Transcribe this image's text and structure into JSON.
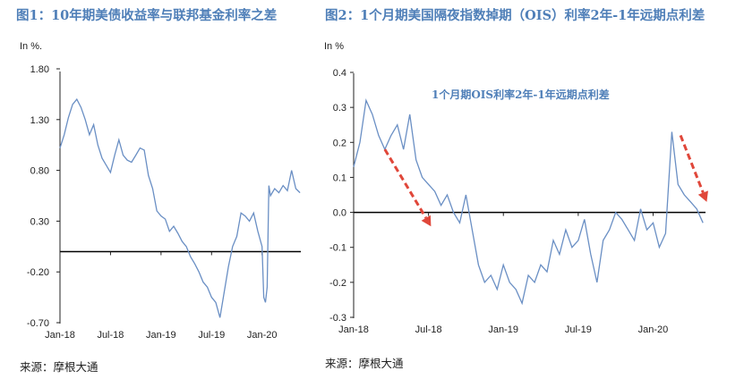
{
  "fig1": {
    "title": "图1：10年期美债收益率与联邦基金利率之差",
    "source": "来源：摩根大通",
    "chart_data": {
      "type": "line",
      "ylabel": "In %.",
      "ylim": [
        -0.7,
        1.8
      ],
      "yticks": [
        1.8,
        1.3,
        0.8,
        0.3,
        -0.2,
        -0.7
      ],
      "ytick_labels": [
        "1.80",
        "1.30",
        "0.80",
        "0.30",
        "-0.20",
        "-0.70"
      ],
      "xlim": [
        0,
        28.6
      ],
      "xticks": [
        0,
        6,
        12,
        18,
        24
      ],
      "xtick_labels": [
        "Jan-18",
        "Jul-18",
        "Jan-19",
        "Jul-19",
        "Jan-20"
      ],
      "zero_line": true,
      "line_color": "#6a8fc4",
      "x": [
        0,
        0.5,
        1,
        1.5,
        2,
        2.5,
        3,
        3.5,
        4,
        4.5,
        5,
        5.5,
        6,
        6.5,
        7,
        7.5,
        8,
        8.5,
        9,
        9.5,
        10,
        10.5,
        11,
        11.5,
        12,
        12.5,
        13,
        13.5,
        14,
        14.5,
        15,
        15.5,
        16,
        16.5,
        17,
        17.5,
        18,
        18.5,
        19,
        19.5,
        20,
        20.5,
        21,
        21.5,
        22,
        22.5,
        23,
        23.5,
        24,
        24.2,
        24.4,
        24.6,
        24.8,
        25,
        25.5,
        26,
        26.5,
        27,
        27.5,
        28,
        28.5
      ],
      "y": [
        1.02,
        1.15,
        1.32,
        1.45,
        1.5,
        1.42,
        1.3,
        1.15,
        1.25,
        1.05,
        0.92,
        0.85,
        0.78,
        0.95,
        1.1,
        0.95,
        0.9,
        0.88,
        0.95,
        1.02,
        1.0,
        0.75,
        0.62,
        0.4,
        0.35,
        0.32,
        0.2,
        0.25,
        0.18,
        0.1,
        0.05,
        -0.05,
        -0.12,
        -0.2,
        -0.3,
        -0.35,
        -0.45,
        -0.5,
        -0.65,
        -0.4,
        -0.15,
        0.05,
        0.15,
        0.38,
        0.35,
        0.3,
        0.38,
        0.2,
        0.05,
        -0.45,
        -0.5,
        -0.35,
        0.65,
        0.55,
        0.62,
        0.58,
        0.65,
        0.6,
        0.8,
        0.62,
        0.58
      ]
    }
  },
  "fig2": {
    "title": "图2：1个月期美国隔夜指数掉期（OIS）利率2年-1年远期点利差",
    "source": "来源：摩根大通",
    "chart_data": {
      "type": "line",
      "ylabel": "In %",
      "series_label": "1个月期OIS利率2年-1年远期点利差",
      "ylim": [
        -0.3,
        0.4
      ],
      "yticks": [
        0.4,
        0.3,
        0.2,
        0.1,
        0.0,
        -0.1,
        -0.2,
        -0.3
      ],
      "ytick_labels": [
        "0.4",
        "0.3",
        "0.2",
        "0.1",
        "0.0",
        "-0.1",
        "-0.2",
        "-0.3"
      ],
      "xlim": [
        0,
        28.2
      ],
      "xticks": [
        0,
        6,
        12,
        18,
        24
      ],
      "xtick_labels": [
        "Jan-18",
        "Jul-18",
        "Jan-19",
        "Jul-19",
        "Jan-20"
      ],
      "zero_line": true,
      "line_color": "#6a8fc4",
      "arrow_color": "#e0473a",
      "x": [
        0,
        0.5,
        1,
        1.5,
        2,
        2.5,
        3,
        3.5,
        4,
        4.5,
        5,
        5.5,
        6,
        6.5,
        7,
        7.5,
        8,
        8.5,
        9,
        9.5,
        10,
        10.5,
        11,
        11.5,
        12,
        12.5,
        13,
        13.5,
        14,
        14.5,
        15,
        15.5,
        16,
        16.5,
        17,
        17.5,
        18,
        18.5,
        19,
        19.5,
        20,
        20.5,
        21,
        21.5,
        22,
        22.5,
        23,
        23.5,
        24,
        24.5,
        25,
        25.5,
        26,
        26.5,
        27,
        27.5,
        28
      ],
      "y": [
        0.13,
        0.2,
        0.32,
        0.28,
        0.22,
        0.18,
        0.22,
        0.25,
        0.18,
        0.28,
        0.15,
        0.1,
        0.08,
        0.06,
        0.02,
        0.05,
        0.0,
        -0.03,
        0.05,
        -0.05,
        -0.15,
        -0.2,
        -0.18,
        -0.22,
        -0.15,
        -0.2,
        -0.22,
        -0.26,
        -0.18,
        -0.2,
        -0.15,
        -0.17,
        -0.08,
        -0.12,
        -0.05,
        -0.1,
        -0.08,
        -0.02,
        -0.12,
        -0.2,
        -0.08,
        -0.05,
        0.0,
        -0.02,
        -0.05,
        -0.08,
        0.01,
        -0.05,
        -0.03,
        -0.1,
        -0.06,
        0.23,
        0.08,
        0.05,
        0.03,
        0.01,
        -0.03
      ]
    }
  },
  "arrows": [
    {
      "x1": 2.5,
      "y1": 0.18,
      "x2": 6.2,
      "y2": -0.04
    },
    {
      "x1": 26.2,
      "y1": 0.22,
      "x2": 28.3,
      "y2": 0.03
    }
  ]
}
